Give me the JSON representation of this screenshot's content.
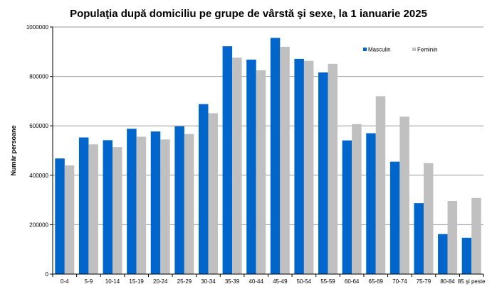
{
  "chart_data": {
    "type": "bar",
    "title": "Populaţia după domiciliu pe grupe de vârstă şi sexe, la 1 ianuarie 2025",
    "xlabel": "",
    "ylabel": "Număr persoane",
    "ylim": [
      0,
      1000000
    ],
    "yticks": [
      0,
      200000,
      400000,
      600000,
      800000,
      1000000
    ],
    "ytick_labels": [
      "0",
      "200000",
      "400000",
      "600000",
      "800000",
      "1000000"
    ],
    "grid": true,
    "legend_position": "top-right",
    "categories": [
      "0-4",
      "5-9",
      "10-14",
      "15-19",
      "20-24",
      "25-29",
      "30-34",
      "35-39",
      "40-44",
      "45-49",
      "50-54",
      "55-59",
      "60-64",
      "65-69",
      "70-74",
      "75-79",
      "80-84",
      "85 şi peste"
    ],
    "series": [
      {
        "name": "Masculin",
        "color": "#0066cc",
        "values": [
          468000,
          553000,
          542000,
          588000,
          577000,
          598000,
          688000,
          922000,
          868000,
          956000,
          871000,
          816000,
          541000,
          570000,
          455000,
          287000,
          162000,
          147000
        ]
      },
      {
        "name": "Feminin",
        "color": "#c0c0c0",
        "values": [
          440000,
          525000,
          514000,
          556000,
          545000,
          567000,
          651000,
          876000,
          825000,
          920000,
          863000,
          851000,
          607000,
          720000,
          637000,
          449000,
          296000,
          308000
        ]
      }
    ]
  }
}
